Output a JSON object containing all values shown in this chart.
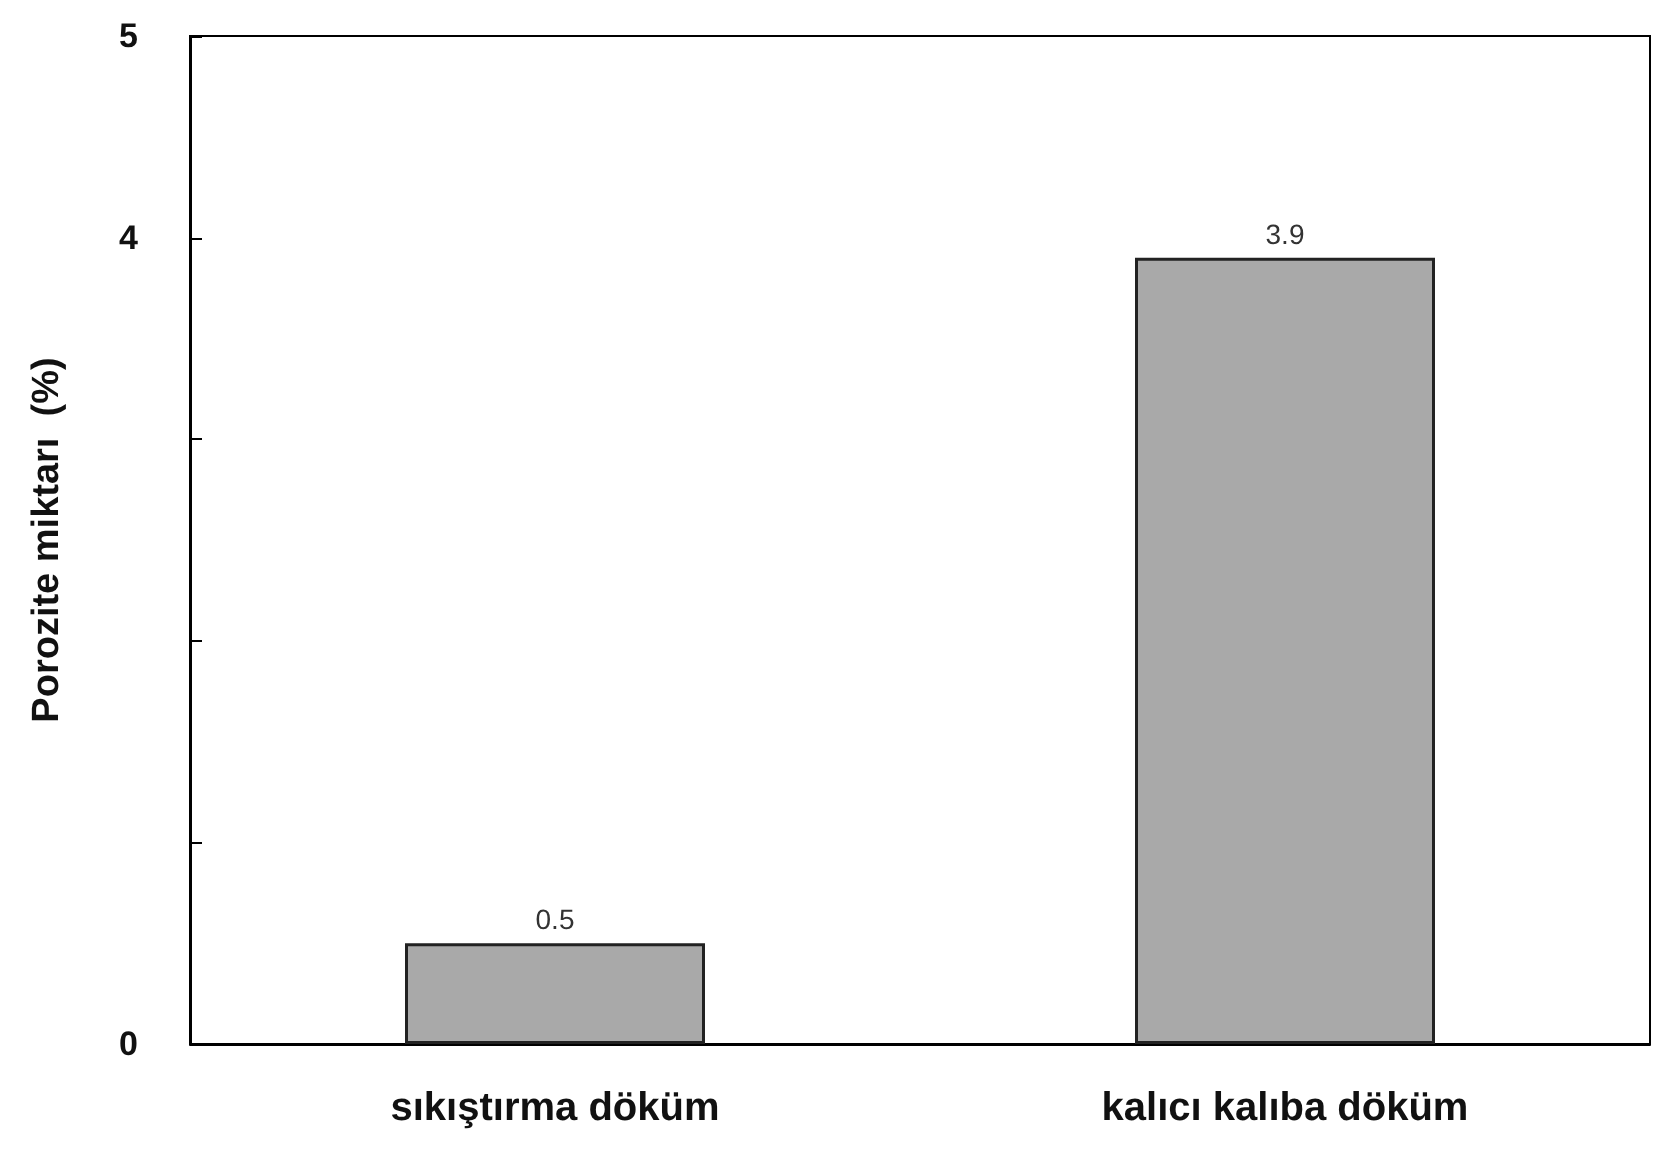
{
  "chart_data": {
    "type": "bar",
    "ylabel": "Porozite miktarı  (%)",
    "categories": [
      "sıkıştırma döküm",
      "kalıcı kalıba döküm"
    ],
    "values": [
      0.5,
      3.9
    ],
    "color": "#a9a9a9",
    "ylim": [
      0,
      5
    ],
    "yticks": [
      0,
      {
        "value": 1,
        "label": null
      },
      {
        "value": 2,
        "label": null
      },
      {
        "value": 3,
        "label": null
      },
      4,
      5
    ],
    "data_labels": true,
    "grid": false
  }
}
